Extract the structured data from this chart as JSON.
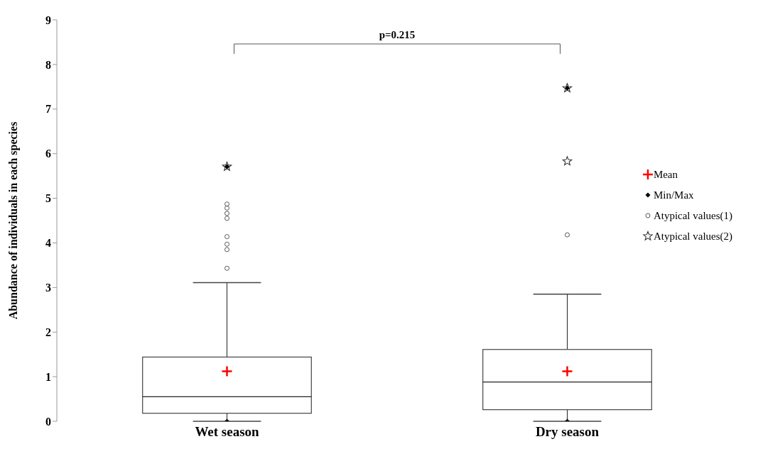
{
  "chart_data": {
    "type": "box",
    "ylabel": "Abundance of individuals  in each species",
    "categories": [
      "Wet season",
      "Dry season"
    ],
    "boxes": [
      {
        "low": 0,
        "q1": 0.18,
        "median": 0.55,
        "q3": 1.44,
        "high": 3.11
      },
      {
        "low": 0,
        "q1": 0.26,
        "median": 0.88,
        "q3": 1.61,
        "high": 2.85
      }
    ],
    "series": [
      {
        "name": "Mean",
        "type": "scatter",
        "marker": "cross",
        "color": "#ff0000",
        "x": [
          "Wet season",
          "Dry season"
        ],
        "values": [
          1.12,
          1.12
        ]
      },
      {
        "name": "Min/Max",
        "type": "scatter",
        "marker": "diamond",
        "color": "#000000",
        "x": [
          "Wet season",
          "Wet season",
          "Dry season",
          "Dry season"
        ],
        "values": [
          0,
          5.71,
          0,
          7.47
        ]
      },
      {
        "name": "Atypical values(1)",
        "type": "scatter",
        "marker": "circle",
        "color": "#555555",
        "x": [
          "Wet season",
          "Wet season",
          "Wet season",
          "Wet season",
          "Wet season",
          "Wet season",
          "Wet season",
          "Wet season",
          "Dry season"
        ],
        "values": [
          4.87,
          4.78,
          4.66,
          4.55,
          4.14,
          3.97,
          3.85,
          3.43,
          4.18
        ]
      },
      {
        "name": "Atypical values(2)",
        "type": "scatter",
        "marker": "star",
        "color": "#333333",
        "x": [
          "Wet season",
          "Dry season",
          "Dry season"
        ],
        "values": [
          5.71,
          5.83,
          7.47
        ]
      }
    ],
    "ylim": [
      0,
      9
    ],
    "yticks": [
      0,
      1,
      2,
      3,
      4,
      5,
      6,
      7,
      8,
      9
    ],
    "legend": "right",
    "annotations": [
      "p=0.215"
    ]
  }
}
